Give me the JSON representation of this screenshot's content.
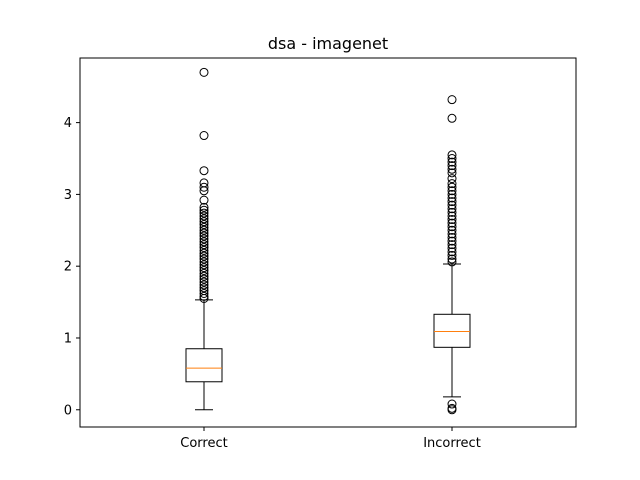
{
  "chart_data": {
    "type": "box",
    "title": "dsa - imagenet",
    "xlabel": "",
    "ylabel": "",
    "categories": [
      "Correct",
      "Incorrect"
    ],
    "ylim": [
      -0.24,
      4.9
    ],
    "yticks": [
      0,
      1,
      2,
      3,
      4
    ],
    "grid": false,
    "colors": {
      "box": "#000000",
      "median": "#ff7f0e",
      "outlier": "#000000"
    },
    "boxes": [
      {
        "name": "Correct",
        "whisker_low": 0.0,
        "q1": 0.39,
        "median": 0.58,
        "q3": 0.85,
        "whisker_high": 1.53,
        "outliers": [
          4.7,
          3.82,
          3.33,
          3.16,
          3.1,
          3.05,
          2.92,
          2.82,
          2.78,
          2.74,
          2.7,
          2.66,
          2.62,
          2.58,
          2.54,
          2.5,
          2.46,
          2.42,
          2.38,
          2.34,
          2.3,
          2.26,
          2.22,
          2.18,
          2.14,
          2.1,
          2.06,
          2.02,
          1.98,
          1.94,
          1.9,
          1.86,
          1.82,
          1.78,
          1.74,
          1.7,
          1.66,
          1.62,
          1.58,
          1.55
        ]
      },
      {
        "name": "Incorrect",
        "whisker_low": 0.18,
        "q1": 0.87,
        "median": 1.09,
        "q3": 1.33,
        "whisker_high": 2.03,
        "outliers": [
          4.32,
          4.06,
          3.55,
          3.5,
          3.45,
          3.4,
          3.35,
          3.3,
          3.22,
          3.15,
          3.1,
          3.05,
          3.0,
          2.95,
          2.9,
          2.85,
          2.8,
          2.75,
          2.7,
          2.65,
          2.6,
          2.55,
          2.5,
          2.45,
          2.4,
          2.35,
          2.3,
          2.25,
          2.2,
          2.15,
          2.1,
          2.06,
          0.08,
          0.02,
          0.0
        ]
      }
    ]
  }
}
